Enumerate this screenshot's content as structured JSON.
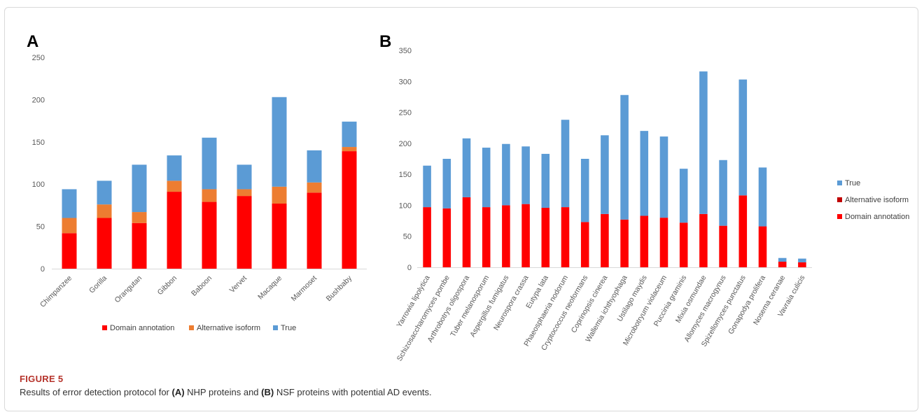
{
  "figure": {
    "label": "FIGURE 5",
    "caption_parts": [
      "Results of error detection protocol for ",
      "(A)",
      " NHP proteins and ",
      "(B)",
      " NSF proteins with potential AD events."
    ]
  },
  "colors": {
    "domain": "#ff0000",
    "alternative": "#ed7d31",
    "alternative_b": "#c00000",
    "true": "#5b9bd5"
  },
  "chart_data": [
    {
      "panel": "A",
      "type": "bar",
      "stacked": true,
      "ylim": [
        0,
        250
      ],
      "yticks": [
        0,
        50,
        100,
        150,
        200,
        250
      ],
      "categories": [
        "Chimpanzee",
        "Gorilla",
        "Orangutan",
        "Gibbon",
        "Baboon",
        "Vervet",
        "Macaque",
        "Marmoset",
        "Bushbaby"
      ],
      "series": [
        {
          "name": "Domain annotation",
          "color": "#ff0000",
          "values": [
            42,
            60,
            54,
            91,
            79,
            86,
            77,
            90,
            139
          ]
        },
        {
          "name": "Alternative isoform",
          "color": "#ed7d31",
          "values": [
            18,
            16,
            13,
            13,
            15,
            8,
            20,
            12,
            5
          ]
        },
        {
          "name": "True",
          "color": "#5b9bd5",
          "values": [
            34,
            28,
            56,
            30,
            61,
            29,
            106,
            38,
            30
          ]
        }
      ],
      "legend_position": "bottom",
      "grid": false
    },
    {
      "panel": "B",
      "type": "bar",
      "stacked": true,
      "ylim": [
        0,
        350
      ],
      "yticks": [
        0,
        50,
        100,
        150,
        200,
        250,
        300,
        350
      ],
      "categories": [
        "Yarrowia lipolytica",
        "Schizosaccharomyces pombe",
        "Arthrobotrys oligospora",
        "Tuber melanosporum",
        "Aspergillus fumigatus",
        "Neurospora crassa",
        "Eutypa lata",
        "Phaeosphaeria nodorum",
        "Cryptococcus neoformans",
        "Coprinopsis cinerea",
        "Wallemia ichthyophaga",
        "Ustilago maydis",
        "Microbotryum violaceum",
        "Puccinia graminis",
        "Mixia osmundae",
        "Allomyces macrogynus",
        "Spizellomyces punctatus",
        "Gonapodya prolifera",
        "Nosema ceranae",
        "Vavraia culicis"
      ],
      "series": [
        {
          "name": "Domain annotation",
          "color": "#ff0000",
          "values": [
            97,
            95,
            113,
            97,
            100,
            102,
            96,
            97,
            73,
            86,
            77,
            83,
            80,
            72,
            86,
            67,
            116,
            66,
            9,
            8
          ]
        },
        {
          "name": "Alternative isoform",
          "color": "#c00000",
          "values": [
            0,
            0,
            0,
            0,
            0,
            0,
            0,
            0,
            0,
            0,
            0,
            0,
            0,
            0,
            0,
            0,
            0,
            0,
            0,
            0
          ]
        },
        {
          "name": "True",
          "color": "#5b9bd5",
          "values": [
            67,
            80,
            95,
            96,
            99,
            93,
            87,
            141,
            102,
            127,
            201,
            137,
            131,
            87,
            230,
            106,
            187,
            95,
            6,
            6
          ]
        }
      ],
      "legend_order": [
        "True",
        "Alternative isoform",
        "Domain annotation"
      ],
      "legend_position": "right",
      "grid": false
    }
  ]
}
